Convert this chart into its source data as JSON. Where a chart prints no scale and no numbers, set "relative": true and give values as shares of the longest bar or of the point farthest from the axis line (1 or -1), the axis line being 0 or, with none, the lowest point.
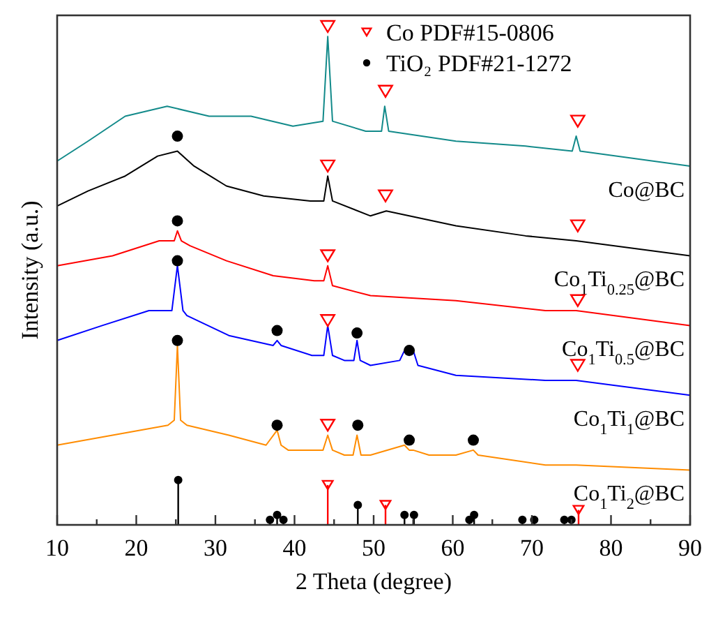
{
  "chart_data": {
    "type": "line",
    "relative": true,
    "xlabel": "2 Theta (degree)",
    "ylabel": "Intensity (a.u.)",
    "xlim": [
      10,
      90
    ],
    "xticks": [
      10,
      {
        "value": 15,
        "label": null
      },
      20,
      {
        "value": 25,
        "label": null
      },
      30,
      {
        "value": 35,
        "label": null
      },
      40,
      {
        "value": 45,
        "label": null
      },
      50,
      {
        "value": 55,
        "label": null
      },
      60,
      {
        "value": 65,
        "label": null
      },
      70,
      {
        "value": 75,
        "label": null
      },
      80,
      {
        "value": 85,
        "label": null
      },
      90
    ],
    "legend": "top right",
    "grid": false,
    "series": [
      {
        "name": "Co@BC",
        "color": "#128a8a",
        "x": [
          10,
          13.9,
          18.6,
          23.9,
          29.2,
          34.5,
          39.8,
          43.6,
          44.2,
          44.8,
          49,
          51,
          51.4,
          51.9,
          60.4,
          69.2,
          75.1,
          75.6,
          76.1,
          90
        ],
        "values": [
          0.73,
          0.77,
          0.82,
          0.84,
          0.82,
          0.82,
          0.8,
          0.81,
          0.98,
          0.81,
          0.79,
          0.79,
          0.84,
          0.79,
          0.77,
          0.76,
          0.75,
          0.78,
          0.75,
          0.72
        ]
      },
      {
        "name": "Co$_{1}$Ti$_{0.25}$@BC",
        "color": "#000000",
        "x": [
          10,
          13.9,
          18.6,
          22.7,
          25.2,
          27.3,
          31.4,
          36.1,
          42,
          43.7,
          44.2,
          44.8,
          49.6,
          51.6,
          60.4,
          69.2,
          75.6,
          90
        ],
        "values": [
          0.64,
          0.67,
          0.7,
          0.74,
          0.75,
          0.72,
          0.68,
          0.66,
          0.65,
          0.65,
          0.7,
          0.65,
          0.62,
          0.63,
          0.6,
          0.58,
          0.57,
          0.54
        ]
      },
      {
        "name": "Co$_{1}$Ti$_{0.5}$@BC",
        "color": "#ff0000",
        "x": [
          10,
          17,
          22.9,
          24.8,
          25.2,
          25.7,
          26.8,
          31.4,
          37.3,
          42.5,
          43.7,
          44.2,
          44.8,
          49.6,
          60.4,
          71.7,
          75.6,
          90
        ],
        "values": [
          0.52,
          0.54,
          0.57,
          0.57,
          0.59,
          0.57,
          0.56,
          0.53,
          0.5,
          0.49,
          0.49,
          0.52,
          0.48,
          0.46,
          0.45,
          0.43,
          0.43,
          0.4
        ]
      },
      {
        "name": "Co$_{1}$Ti$_{1}$@BC",
        "color": "#0000ff",
        "x": [
          10,
          15.7,
          21.6,
          24.5,
          25.2,
          25.9,
          26.4,
          31.7,
          37.3,
          37.8,
          38.3,
          42.2,
          43.7,
          44.2,
          44.8,
          46.3,
          47.5,
          47.9,
          48.3,
          49.6,
          53.3,
          53.9,
          54.5,
          55,
          55.6,
          60.4,
          71.7,
          75.6,
          90
        ],
        "values": [
          0.37,
          0.4,
          0.43,
          0.43,
          0.52,
          0.43,
          0.42,
          0.38,
          0.36,
          0.37,
          0.36,
          0.34,
          0.34,
          0.4,
          0.34,
          0.33,
          0.33,
          0.37,
          0.33,
          0.32,
          0.33,
          0.35,
          0.34,
          0.35,
          0.32,
          0.3,
          0.29,
          0.29,
          0.26
        ]
      },
      {
        "name": "Co$_{1}$Ti$_{2}$@BC",
        "color": "#ff8c00",
        "x": [
          10,
          17,
          24,
          24.8,
          25.2,
          25.6,
          26.4,
          31.7,
          36.4,
          37.8,
          38.3,
          39.2,
          43.6,
          44.2,
          44.8,
          46.3,
          47.4,
          47.9,
          48.4,
          49.6,
          53.9,
          54.5,
          55,
          57,
          60.4,
          62.6,
          63.2,
          71.7,
          75.6,
          90
        ],
        "values": [
          0.16,
          0.18,
          0.2,
          0.21,
          0.36,
          0.21,
          0.2,
          0.18,
          0.16,
          0.19,
          0.16,
          0.15,
          0.15,
          0.18,
          0.15,
          0.14,
          0.14,
          0.18,
          0.14,
          0.14,
          0.16,
          0.15,
          0.15,
          0.14,
          0.14,
          0.15,
          0.14,
          0.12,
          0.12,
          0.11
        ]
      },
      {
        "type": "lollipop",
        "color": "#000000",
        "marker": "circle",
        "x": [
          25.3,
          36.9,
          37.8,
          38.6,
          48,
          53.9,
          55.1,
          62.1,
          62.7,
          68.8,
          70.3,
          74.1,
          75
        ],
        "values": [
          0.09,
          0.01,
          0.02,
          0.01,
          0.04,
          0.02,
          0.02,
          0.01,
          0.02,
          0.01,
          0.01,
          0.01,
          0.01
        ]
      },
      {
        "type": "lollipop",
        "color": "#ff0000",
        "marker": "triangle",
        "x": [
          44.2,
          51.5,
          75.9
        ],
        "values": [
          0.08,
          0.04,
          0.03
        ]
      },
      {
        "type": "scatter",
        "name": "Co PDF#15-0806",
        "color": "#ff0000",
        "marker": "triangle",
        "x": [
          44.2,
          51.5,
          75.8,
          44.2,
          51.5,
          75.8,
          44.2,
          75.8,
          44.2,
          75.8,
          44.2
        ],
        "values": [
          1,
          0.87,
          0.81,
          0.72,
          0.66,
          0.6,
          0.54,
          0.45,
          0.41,
          0.32,
          0.2
        ]
      },
      {
        "type": "scatter",
        "name": "TiO₂ PDF#21-1272",
        "color": "#000000",
        "marker": "circle",
        "x": [
          25.2,
          25.2,
          25.2,
          37.8,
          47.9,
          54.5,
          25.2,
          37.8,
          48,
          54.5,
          62.6
        ],
        "values": [
          0.78,
          0.61,
          0.53,
          0.39,
          0.385,
          0.35,
          0.37,
          0.2,
          0.2,
          0.17,
          0.17
        ]
      }
    ]
  }
}
